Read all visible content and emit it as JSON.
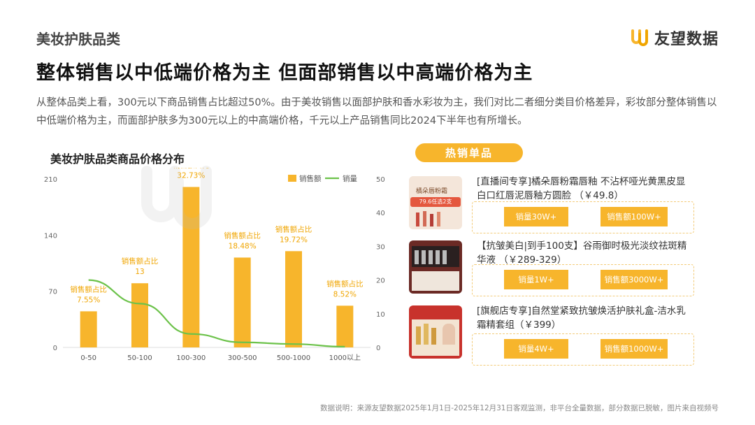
{
  "header": {
    "category": "美妆护肤品类",
    "brand": "友望数据",
    "headline": "整体销售以中低端价格为主 但面部销售以中高端价格为主",
    "description": "从整体品类上看，300元以下商品销售占比超过50%。由于美妆销售以面部护肤和香水彩妆为主，我们对比二者细分类目价格差异，彩妆部分整体销售以中低端价格为主，而面部护肤多为300元以上的中高端价格，千元以上产品销售同比2024下半年也有所增长。"
  },
  "colors": {
    "accent": "#f7b52c",
    "line": "#6cc24a",
    "label": "#f0a500"
  },
  "chart_data": {
    "type": "bar",
    "title": "美妆护肤品类商品价格分布",
    "categories": [
      "0-50",
      "50-100",
      "100-300",
      "300-500",
      "500-1000",
      "1000以上"
    ],
    "series": [
      {
        "name": "销售额",
        "type": "bar",
        "axis": "left",
        "values": [
          45,
          80,
          200,
          112,
          120,
          52
        ]
      },
      {
        "name": "销量",
        "type": "line",
        "axis": "right",
        "values": [
          20,
          13,
          4,
          1.5,
          1,
          0.2
        ]
      }
    ],
    "annotations": [
      {
        "label": "销售额占比",
        "value": "7.55%"
      },
      {
        "label": "销售额占比",
        "value": "13"
      },
      {
        "label": "销售额占比",
        "value": "32.73%"
      },
      {
        "label": "销售额占比",
        "value": "18.48%"
      },
      {
        "label": "销售额占比",
        "value": "19.72%"
      },
      {
        "label": "销售额占比",
        "value": "8.52%"
      }
    ],
    "y_left": {
      "ticks": [
        0,
        70,
        140,
        210
      ],
      "lim": [
        0,
        210
      ]
    },
    "y_right": {
      "ticks": [
        0,
        10,
        20,
        30,
        40,
        50
      ],
      "lim": [
        0,
        50
      ]
    },
    "legend_position": "top-right"
  },
  "hot": {
    "title": "热销单品",
    "products": [
      {
        "title": "[直播间专享]橘朵唇粉霜唇釉 不沾杯哑光黄黑皮显白口红唇泥唇釉方圆脸 （￥49.8）",
        "volume": "销量30W+",
        "sales": "销售额100W+",
        "thumb_text1": "橘朵唇粉霜",
        "thumb_text2": "79.6任选2支"
      },
      {
        "title": "【抗皱美白|到手100支】谷雨御时极光淡纹祛斑精华液 （￥289-329）",
        "volume": "销量1W+",
        "sales": "销售额3000W+"
      },
      {
        "title": "[旗舰店专享]自然堂紧致抗皱焕活护肤礼盒-洁水乳霜精套组（￥399）",
        "volume": "销量4W+",
        "sales": "销售额1000W+"
      }
    ]
  },
  "footnote": "数据说明：来源友望数据2025年1月1日-2025年12月31日客观监测，非平台全量数据，部分数据已脱敏，图片来自视频号"
}
